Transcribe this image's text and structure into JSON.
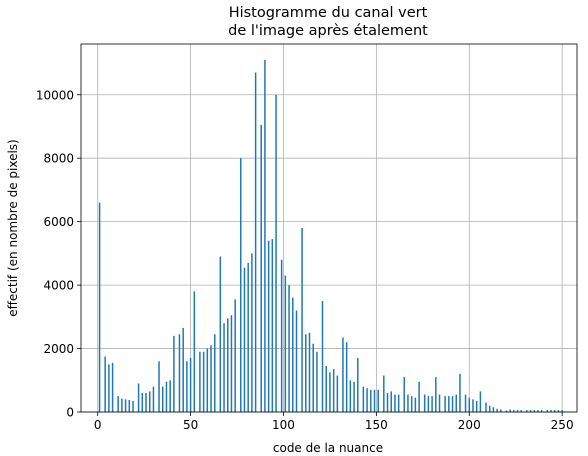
{
  "chart_data": {
    "type": "bar",
    "title": [
      "Histogramme du canal vert",
      "de l'image après étalement"
    ],
    "xlabel": "code de la nuance",
    "ylabel": "effectif (en nombre de pixels)",
    "xlim": [
      -9,
      258
    ],
    "ylim": [
      0,
      11600
    ],
    "xticks": [
      0,
      50,
      100,
      150,
      200,
      250
    ],
    "yticks": [
      0,
      2000,
      4000,
      6000,
      8000,
      10000
    ],
    "grid": true,
    "color": "#1f77b4",
    "bars": {
      "x": [
        1,
        4,
        6,
        8,
        11,
        13,
        15,
        17,
        19,
        22,
        24,
        26,
        28,
        30,
        33,
        35,
        37,
        39,
        41,
        44,
        46,
        48,
        50,
        52,
        55,
        57,
        59,
        61,
        63,
        66,
        68,
        70,
        72,
        74,
        77,
        79,
        81,
        83,
        85,
        88,
        90,
        92,
        94,
        96,
        99,
        101,
        103,
        105,
        107,
        110,
        112,
        114,
        116,
        118,
        121,
        123,
        125,
        127,
        129,
        132,
        134,
        136,
        138,
        140,
        143,
        145,
        147,
        149,
        151,
        154,
        156,
        158,
        160,
        162,
        165,
        167,
        169,
        171,
        173,
        176,
        178,
        180,
        182,
        184,
        187,
        189,
        191,
        193,
        195,
        198,
        200,
        202,
        204,
        206,
        209,
        211,
        213,
        215,
        217,
        220,
        222,
        224,
        226,
        228,
        231,
        233,
        235,
        237,
        239,
        242,
        244,
        246,
        248,
        250
      ],
      "values": [
        6600,
        1750,
        1500,
        1550,
        500,
        420,
        400,
        380,
        350,
        900,
        600,
        600,
        650,
        800,
        1600,
        800,
        950,
        1000,
        2400,
        2450,
        2650,
        1600,
        1700,
        3800,
        1900,
        1900,
        2000,
        2100,
        2450,
        4900,
        2800,
        2950,
        3050,
        3550,
        8000,
        4550,
        4700,
        5000,
        10700,
        9050,
        11100,
        5400,
        5450,
        10000,
        4800,
        4300,
        4000,
        3600,
        3200,
        5800,
        2450,
        2500,
        2150,
        1900,
        3500,
        1450,
        1250,
        1350,
        1150,
        2350,
        2200,
        1000,
        950,
        1700,
        800,
        750,
        700,
        700,
        700,
        1150,
        600,
        650,
        550,
        550,
        1100,
        550,
        500,
        450,
        950,
        550,
        500,
        500,
        1100,
        550,
        500,
        500,
        500,
        550,
        1200,
        550,
        450,
        400,
        350,
        650,
        300,
        200,
        150,
        100,
        80,
        50,
        80,
        60,
        60,
        60,
        60,
        60,
        60,
        60,
        60,
        60,
        60,
        60,
        60,
        60
      ]
    }
  }
}
